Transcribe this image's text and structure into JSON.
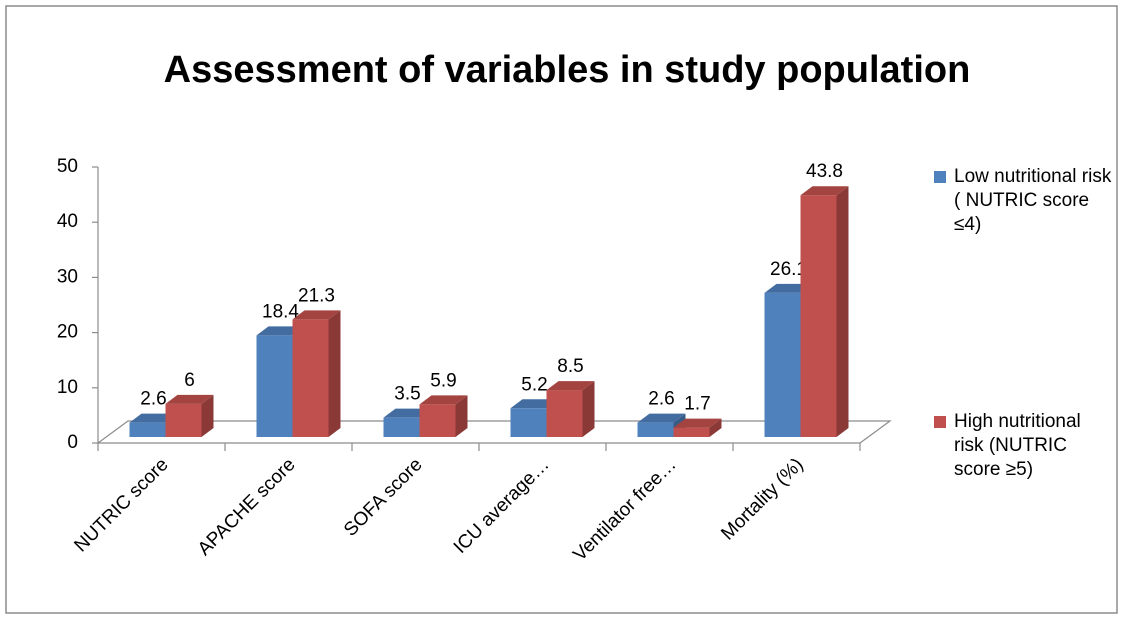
{
  "chart_data": {
    "type": "bar3d",
    "title": "Assessment of variables in study population",
    "categories": [
      "NUTRIC score",
      "APACHE score",
      "SOFA score",
      "ICU average…",
      "Ventilator free…",
      "Mortality (%)"
    ],
    "series": [
      {
        "name": "Low nutritional risk ( NUTRIC score ≤4)",
        "color": "#4f81bd",
        "values": [
          2.6,
          18.4,
          3.5,
          5.2,
          2.6,
          26.1
        ]
      },
      {
        "name": "High nutritional risk (NUTRIC score ≥5)",
        "color": "#c0504d",
        "values": [
          6,
          21.3,
          5.9,
          8.5,
          1.7,
          43.8
        ]
      }
    ],
    "ylim": [
      0,
      50
    ],
    "yticks": [
      0,
      10,
      20,
      30,
      40,
      50
    ],
    "grid": false,
    "legend": "right"
  }
}
